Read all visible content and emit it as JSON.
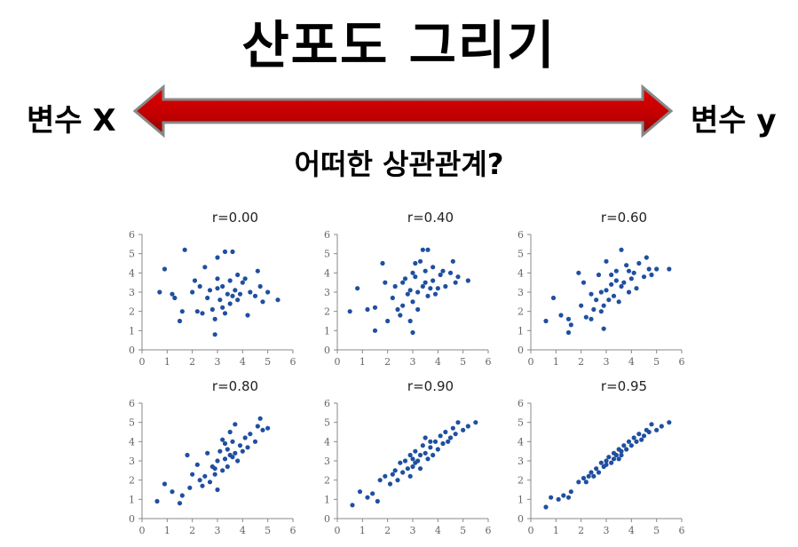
{
  "title": "산포도 그리기",
  "var_x": "변수 X",
  "var_y": "변수 y",
  "question": "어떠한 상관관계?",
  "colors": {
    "arrow": "#c00000",
    "point": "#1f4fa0",
    "axis": "#888888"
  },
  "chart_data": [
    {
      "type": "scatter",
      "title": "r=0.00",
      "xlim": [
        0,
        6
      ],
      "ylim": [
        0,
        6
      ],
      "xticks": [
        0,
        1,
        2,
        3,
        4,
        5,
        6
      ],
      "yticks": [
        0,
        1,
        2,
        3,
        4,
        5,
        6
      ],
      "points": [
        [
          0.7,
          3.0
        ],
        [
          0.9,
          4.2
        ],
        [
          1.3,
          2.7
        ],
        [
          1.5,
          1.5
        ],
        [
          1.6,
          2.0
        ],
        [
          1.7,
          5.2
        ],
        [
          2.0,
          3.0
        ],
        [
          2.1,
          3.6
        ],
        [
          2.2,
          2.0
        ],
        [
          2.4,
          1.9
        ],
        [
          2.5,
          4.3
        ],
        [
          2.6,
          2.7
        ],
        [
          2.7,
          3.1
        ],
        [
          2.8,
          2.1
        ],
        [
          2.9,
          0.8
        ],
        [
          2.9,
          1.6
        ],
        [
          3.0,
          3.2
        ],
        [
          3.0,
          4.8
        ],
        [
          3.1,
          2.6
        ],
        [
          3.2,
          2.2
        ],
        [
          3.2,
          3.3
        ],
        [
          3.3,
          5.1
        ],
        [
          3.3,
          1.9
        ],
        [
          3.4,
          2.9
        ],
        [
          3.5,
          3.6
        ],
        [
          3.5,
          2.4
        ],
        [
          3.6,
          5.1
        ],
        [
          3.6,
          2.8
        ],
        [
          3.7,
          3.1
        ],
        [
          3.8,
          3.9
        ],
        [
          3.8,
          2.6
        ],
        [
          3.9,
          2.9
        ],
        [
          4.0,
          3.5
        ],
        [
          4.1,
          3.7
        ],
        [
          4.2,
          1.8
        ],
        [
          4.3,
          3.0
        ],
        [
          4.5,
          2.8
        ],
        [
          4.6,
          4.1
        ],
        [
          4.7,
          3.3
        ],
        [
          4.8,
          2.5
        ],
        [
          5.0,
          3.0
        ],
        [
          5.4,
          2.6
        ],
        [
          2.3,
          3.3
        ],
        [
          3.0,
          3.7
        ],
        [
          1.2,
          2.9
        ]
      ]
    },
    {
      "type": "scatter",
      "title": "r=0.40",
      "xlim": [
        0,
        6
      ],
      "ylim": [
        0,
        6
      ],
      "xticks": [
        0,
        1,
        2,
        3,
        4,
        5,
        6
      ],
      "yticks": [
        0,
        1,
        2,
        3,
        4,
        5,
        6
      ],
      "points": [
        [
          0.5,
          2.0
        ],
        [
          0.8,
          3.2
        ],
        [
          1.2,
          2.1
        ],
        [
          1.5,
          2.2
        ],
        [
          1.5,
          1.0
        ],
        [
          1.8,
          4.5
        ],
        [
          2.0,
          1.5
        ],
        [
          2.3,
          3.3
        ],
        [
          2.4,
          2.1
        ],
        [
          2.5,
          1.8
        ],
        [
          2.6,
          2.3
        ],
        [
          2.7,
          3.7
        ],
        [
          2.8,
          2.9
        ],
        [
          2.9,
          3.1
        ],
        [
          2.9,
          1.5
        ],
        [
          3.0,
          0.9
        ],
        [
          3.0,
          2.5
        ],
        [
          3.1,
          4.5
        ],
        [
          3.1,
          3.8
        ],
        [
          3.2,
          3.0
        ],
        [
          3.2,
          2.1
        ],
        [
          3.3,
          4.6
        ],
        [
          3.4,
          3.3
        ],
        [
          3.4,
          5.2
        ],
        [
          3.5,
          3.5
        ],
        [
          3.6,
          5.2
        ],
        [
          3.6,
          2.8
        ],
        [
          3.7,
          3.2
        ],
        [
          3.8,
          3.6
        ],
        [
          3.8,
          4.3
        ],
        [
          3.9,
          2.9
        ],
        [
          4.0,
          3.2
        ],
        [
          4.1,
          3.9
        ],
        [
          4.2,
          4.1
        ],
        [
          4.3,
          3.3
        ],
        [
          4.5,
          4.0
        ],
        [
          4.6,
          4.6
        ],
        [
          4.7,
          3.5
        ],
        [
          4.8,
          3.8
        ],
        [
          5.2,
          3.6
        ],
        [
          1.9,
          3.5
        ],
        [
          2.2,
          2.7
        ],
        [
          3.0,
          4.0
        ],
        [
          3.5,
          4.1
        ],
        [
          2.6,
          3.5
        ]
      ]
    },
    {
      "type": "scatter",
      "title": "r=0.60",
      "xlim": [
        0,
        6
      ],
      "ylim": [
        0,
        6
      ],
      "xticks": [
        0,
        1,
        2,
        3,
        4,
        5,
        6
      ],
      "yticks": [
        0,
        1,
        2,
        3,
        4,
        5,
        6
      ],
      "points": [
        [
          0.6,
          1.5
        ],
        [
          0.9,
          2.7
        ],
        [
          1.2,
          1.8
        ],
        [
          1.5,
          1.6
        ],
        [
          1.5,
          0.9
        ],
        [
          1.6,
          1.3
        ],
        [
          1.9,
          4.0
        ],
        [
          2.0,
          2.3
        ],
        [
          2.1,
          3.5
        ],
        [
          2.2,
          1.7
        ],
        [
          2.4,
          1.6
        ],
        [
          2.4,
          2.9
        ],
        [
          2.6,
          2.6
        ],
        [
          2.7,
          3.9
        ],
        [
          2.8,
          2.0
        ],
        [
          2.9,
          1.1
        ],
        [
          2.9,
          2.3
        ],
        [
          3.0,
          3.1
        ],
        [
          3.0,
          4.6
        ],
        [
          3.1,
          2.6
        ],
        [
          3.2,
          3.4
        ],
        [
          3.3,
          2.8
        ],
        [
          3.4,
          3.6
        ],
        [
          3.4,
          4.1
        ],
        [
          3.5,
          2.5
        ],
        [
          3.6,
          3.3
        ],
        [
          3.6,
          5.2
        ],
        [
          3.7,
          3.5
        ],
        [
          3.8,
          4.4
        ],
        [
          3.9,
          3.0
        ],
        [
          4.0,
          3.7
        ],
        [
          4.1,
          4.0
        ],
        [
          4.2,
          3.2
        ],
        [
          4.3,
          4.5
        ],
        [
          4.5,
          3.8
        ],
        [
          4.6,
          4.8
        ],
        [
          4.7,
          4.2
        ],
        [
          4.8,
          3.9
        ],
        [
          5.0,
          4.2
        ],
        [
          5.5,
          4.2
        ],
        [
          2.8,
          3.0
        ],
        [
          3.2,
          3.9
        ],
        [
          2.5,
          2.1
        ],
        [
          3.9,
          4.1
        ]
      ]
    },
    {
      "type": "scatter",
      "title": "r=0.80",
      "xlim": [
        0,
        6
      ],
      "ylim": [
        0,
        6
      ],
      "xticks": [
        0,
        1,
        2,
        3,
        4,
        5,
        6
      ],
      "yticks": [
        0,
        1,
        2,
        3,
        4,
        5,
        6
      ],
      "points": [
        [
          0.6,
          0.9
        ],
        [
          0.9,
          1.8
        ],
        [
          1.2,
          1.4
        ],
        [
          1.5,
          0.8
        ],
        [
          1.6,
          1.2
        ],
        [
          1.8,
          3.3
        ],
        [
          2.0,
          2.3
        ],
        [
          2.2,
          2.8
        ],
        [
          2.4,
          1.7
        ],
        [
          2.5,
          2.2
        ],
        [
          2.6,
          3.4
        ],
        [
          2.7,
          1.9
        ],
        [
          2.8,
          2.7
        ],
        [
          2.9,
          2.3
        ],
        [
          3.0,
          1.5
        ],
        [
          3.0,
          3.0
        ],
        [
          3.1,
          3.5
        ],
        [
          3.2,
          2.5
        ],
        [
          3.2,
          4.1
        ],
        [
          3.3,
          3.1
        ],
        [
          3.4,
          3.6
        ],
        [
          3.4,
          2.7
        ],
        [
          3.5,
          4.5
        ],
        [
          3.5,
          3.3
        ],
        [
          3.6,
          4.0
        ],
        [
          3.7,
          3.4
        ],
        [
          3.7,
          4.9
        ],
        [
          3.8,
          3.0
        ],
        [
          3.9,
          3.8
        ],
        [
          4.0,
          3.5
        ],
        [
          4.1,
          4.2
        ],
        [
          4.2,
          3.7
        ],
        [
          4.3,
          4.4
        ],
        [
          4.5,
          4.0
        ],
        [
          4.6,
          4.8
        ],
        [
          4.7,
          5.2
        ],
        [
          4.8,
          4.6
        ],
        [
          5.0,
          4.7
        ],
        [
          2.3,
          2.0
        ],
        [
          3.3,
          3.9
        ],
        [
          2.9,
          2.6
        ],
        [
          3.6,
          3.2
        ],
        [
          1.9,
          1.6
        ]
      ]
    },
    {
      "type": "scatter",
      "title": "r=0.90",
      "xlim": [
        0,
        6
      ],
      "ylim": [
        0,
        6
      ],
      "xticks": [
        0,
        1,
        2,
        3,
        4,
        5,
        6
      ],
      "yticks": [
        0,
        1,
        2,
        3,
        4,
        5,
        6
      ],
      "points": [
        [
          0.6,
          0.7
        ],
        [
          0.9,
          1.4
        ],
        [
          1.2,
          1.1
        ],
        [
          1.4,
          1.3
        ],
        [
          1.6,
          0.9
        ],
        [
          1.7,
          2.0
        ],
        [
          1.9,
          2.2
        ],
        [
          2.1,
          1.8
        ],
        [
          2.3,
          2.5
        ],
        [
          2.4,
          2.0
        ],
        [
          2.5,
          2.9
        ],
        [
          2.6,
          2.4
        ],
        [
          2.7,
          3.0
        ],
        [
          2.8,
          2.6
        ],
        [
          2.9,
          2.2
        ],
        [
          3.0,
          3.1
        ],
        [
          3.0,
          2.7
        ],
        [
          3.1,
          3.5
        ],
        [
          3.2,
          3.0
        ],
        [
          3.3,
          3.3
        ],
        [
          3.3,
          2.6
        ],
        [
          3.4,
          3.8
        ],
        [
          3.5,
          3.4
        ],
        [
          3.5,
          4.2
        ],
        [
          3.6,
          3.1
        ],
        [
          3.7,
          3.7
        ],
        [
          3.8,
          3.3
        ],
        [
          3.9,
          4.0
        ],
        [
          4.0,
          3.6
        ],
        [
          4.1,
          4.3
        ],
        [
          4.2,
          3.9
        ],
        [
          4.3,
          4.5
        ],
        [
          4.5,
          4.2
        ],
        [
          4.6,
          4.7
        ],
        [
          4.7,
          4.4
        ],
        [
          4.8,
          5.0
        ],
        [
          5.0,
          4.6
        ],
        [
          5.2,
          4.8
        ],
        [
          5.5,
          5.0
        ],
        [
          3.1,
          2.9
        ],
        [
          2.9,
          3.3
        ],
        [
          3.7,
          4.0
        ],
        [
          2.2,
          2.3
        ],
        [
          4.4,
          4.0
        ]
      ]
    },
    {
      "type": "scatter",
      "title": "r=0.95",
      "xlim": [
        0,
        6
      ],
      "ylim": [
        0,
        6
      ],
      "xticks": [
        0,
        1,
        2,
        3,
        4,
        5,
        6
      ],
      "yticks": [
        0,
        1,
        2,
        3,
        4,
        5,
        6
      ],
      "points": [
        [
          0.6,
          0.6
        ],
        [
          0.8,
          1.1
        ],
        [
          1.1,
          1.0
        ],
        [
          1.3,
          1.2
        ],
        [
          1.5,
          1.1
        ],
        [
          1.6,
          1.4
        ],
        [
          1.9,
          1.9
        ],
        [
          2.1,
          2.1
        ],
        [
          2.2,
          1.9
        ],
        [
          2.4,
          2.4
        ],
        [
          2.5,
          2.2
        ],
        [
          2.6,
          2.6
        ],
        [
          2.7,
          2.4
        ],
        [
          2.8,
          2.9
        ],
        [
          2.9,
          2.7
        ],
        [
          3.0,
          3.0
        ],
        [
          3.0,
          2.8
        ],
        [
          3.1,
          3.2
        ],
        [
          3.2,
          2.9
        ],
        [
          3.3,
          3.4
        ],
        [
          3.3,
          3.1
        ],
        [
          3.4,
          3.3
        ],
        [
          3.5,
          3.6
        ],
        [
          3.5,
          3.1
        ],
        [
          3.6,
          3.5
        ],
        [
          3.7,
          3.8
        ],
        [
          3.8,
          3.6
        ],
        [
          3.9,
          4.0
        ],
        [
          4.0,
          3.8
        ],
        [
          4.1,
          4.2
        ],
        [
          4.2,
          4.0
        ],
        [
          4.3,
          4.4
        ],
        [
          4.5,
          4.3
        ],
        [
          4.6,
          4.6
        ],
        [
          4.7,
          4.5
        ],
        [
          4.8,
          4.9
        ],
        [
          5.0,
          4.6
        ],
        [
          5.2,
          4.8
        ],
        [
          5.5,
          5.0
        ],
        [
          2.3,
          2.2
        ],
        [
          3.6,
          3.3
        ],
        [
          4.4,
          4.1
        ]
      ]
    }
  ]
}
